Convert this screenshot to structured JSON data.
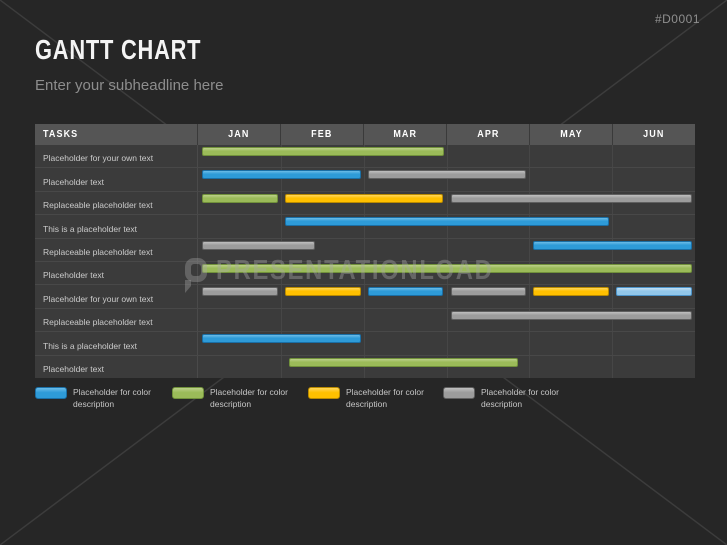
{
  "slide": {
    "code": "#D0001",
    "title": "GANTT CHART",
    "subtitle": "Enter your subheadline here"
  },
  "watermark": {
    "text": "PRESENTATIONLOAD"
  },
  "colors": {
    "slide_bg": "#262626",
    "row_bg": "#3B3B3B",
    "header_bg": "#555555",
    "blue": {
      "base": "#2E9BD8",
      "light": "#6CBCE8",
      "dark": "#1A6FA6"
    },
    "green": {
      "base": "#9BBB59",
      "light": "#BCD08A",
      "dark": "#71913B"
    },
    "yellow": {
      "base": "#FFC000",
      "light": "#FFD75E",
      "dark": "#B98A00"
    },
    "gray": {
      "base": "#9C9C9C",
      "light": "#C0C0C0",
      "dark": "#5F5F5F"
    },
    "lightblue": {
      "base": "#92C7EA",
      "light": "#C2E0F4",
      "dark": "#4D93C8"
    }
  },
  "chart_data": {
    "type": "gantt",
    "title": "GANTT CHART",
    "tasks_header": "TASKS",
    "columns": [
      "JAN",
      "FEB",
      "MAR",
      "APR",
      "MAY",
      "JUN"
    ],
    "x_range_months": [
      0,
      6
    ],
    "tasks": [
      {
        "label": "Placeholder for your own text",
        "bars": [
          {
            "start": 0,
            "end": 3,
            "color": "green"
          }
        ]
      },
      {
        "label": "Placeholder text",
        "bars": [
          {
            "start": 0,
            "end": 2,
            "color": "blue"
          },
          {
            "start": 2,
            "end": 4,
            "color": "gray"
          }
        ]
      },
      {
        "label": "Replaceable placeholder text",
        "bars": [
          {
            "start": 0,
            "end": 1,
            "color": "green"
          },
          {
            "start": 1,
            "end": 3,
            "color": "yellow"
          },
          {
            "start": 3,
            "end": 6,
            "color": "gray"
          }
        ]
      },
      {
        "label": "This is a placeholder text",
        "bars": [
          {
            "start": 1,
            "end": 5,
            "color": "blue"
          }
        ]
      },
      {
        "label": "Replaceable placeholder text",
        "bars": [
          {
            "start": 0,
            "end": 1.45,
            "color": "gray"
          },
          {
            "start": 4,
            "end": 6,
            "color": "blue"
          }
        ]
      },
      {
        "label": "Placeholder text",
        "bars": [
          {
            "start": 0,
            "end": 6,
            "color": "green"
          }
        ]
      },
      {
        "label": "Placeholder for your own text",
        "bars": [
          {
            "start": 0,
            "end": 1,
            "color": "gray"
          },
          {
            "start": 1,
            "end": 2,
            "color": "yellow"
          },
          {
            "start": 2,
            "end": 3,
            "color": "blue"
          },
          {
            "start": 3,
            "end": 4,
            "color": "gray"
          },
          {
            "start": 4,
            "end": 5,
            "color": "yellow"
          },
          {
            "start": 5,
            "end": 6,
            "color": "lightblue"
          }
        ]
      },
      {
        "label": "Replaceable placeholder text",
        "bars": [
          {
            "start": 3,
            "end": 6,
            "color": "gray"
          }
        ]
      },
      {
        "label": "This is a placeholder text",
        "bars": [
          {
            "start": 0,
            "end": 2,
            "color": "blue"
          }
        ]
      },
      {
        "label": "Placeholder text",
        "bars": [
          {
            "start": 1.05,
            "end": 3.9,
            "color": "green"
          }
        ]
      }
    ],
    "legend": [
      {
        "color": "blue",
        "label": "Placeholder for color description"
      },
      {
        "color": "green",
        "label": "Placeholder for color description"
      },
      {
        "color": "yellow",
        "label": "Placeholder for color description"
      },
      {
        "color": "gray",
        "label": "Placeholder for color description"
      }
    ],
    "legend_x_offsets": [
      0,
      137,
      273,
      408
    ]
  }
}
